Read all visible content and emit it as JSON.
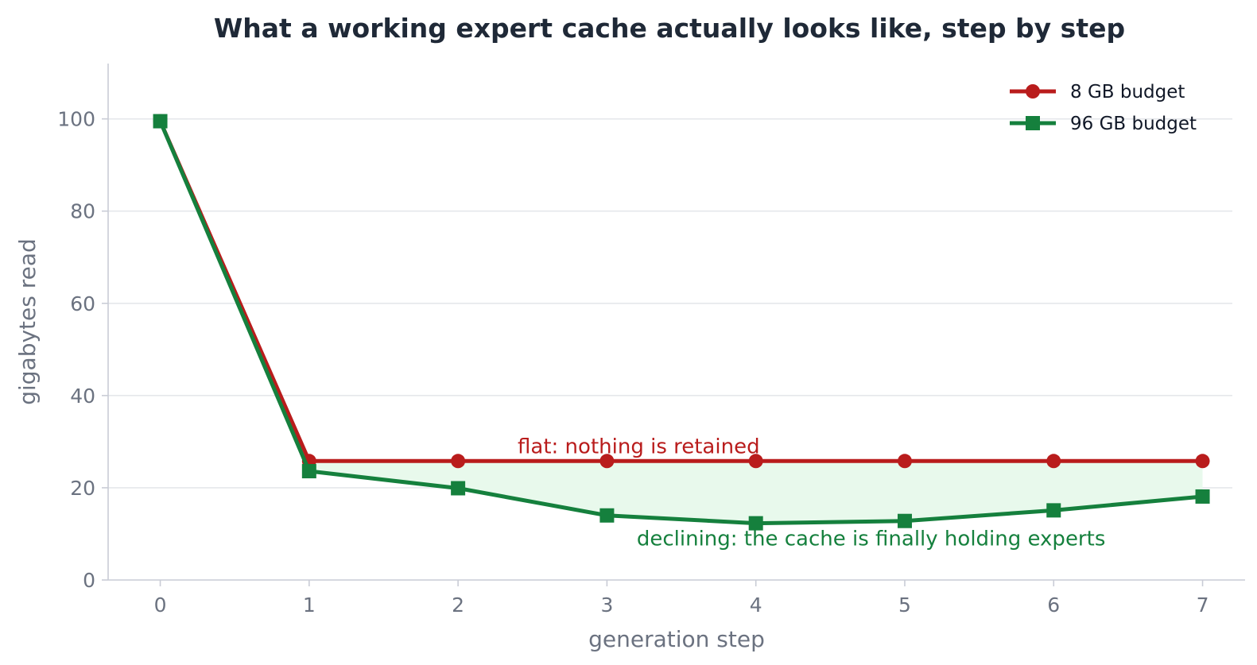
{
  "chart_data": {
    "type": "line",
    "title": "What a working expert cache actually looks like, step by step",
    "xlabel": "generation step",
    "ylabel": "gigabytes read",
    "x": [
      0,
      1,
      2,
      3,
      4,
      5,
      6,
      7
    ],
    "xlim": [
      -0.35,
      7.2
    ],
    "ylim": [
      0,
      112
    ],
    "yticks": [
      0,
      20,
      40,
      60,
      80,
      100
    ],
    "xticks": [
      0,
      1,
      2,
      3,
      4,
      5,
      6,
      7
    ],
    "grid": "horizontal",
    "legend_position": "top-right",
    "series": [
      {
        "name": "8 GB budget",
        "color": "#b91c1c",
        "marker": "circle",
        "values": [
          99.5,
          25.8,
          25.8,
          25.8,
          25.8,
          25.8,
          25.8,
          25.8
        ]
      },
      {
        "name": "96 GB budget",
        "color": "#15803d",
        "marker": "square",
        "values": [
          99.5,
          23.6,
          19.9,
          14.0,
          12.3,
          12.8,
          15.1,
          18.1
        ]
      }
    ],
    "fill_between": {
      "series": [
        0,
        1
      ],
      "from_x": 1,
      "color": "#e8f9ec"
    },
    "annotations": [
      {
        "text": "flat: nothing is retained",
        "x": 2.4,
        "y": 27.5,
        "color": "#b91c1c"
      },
      {
        "text": "declining: the cache is finally holding experts",
        "x": 3.2,
        "y": 7.5,
        "color": "#15803d"
      }
    ]
  }
}
